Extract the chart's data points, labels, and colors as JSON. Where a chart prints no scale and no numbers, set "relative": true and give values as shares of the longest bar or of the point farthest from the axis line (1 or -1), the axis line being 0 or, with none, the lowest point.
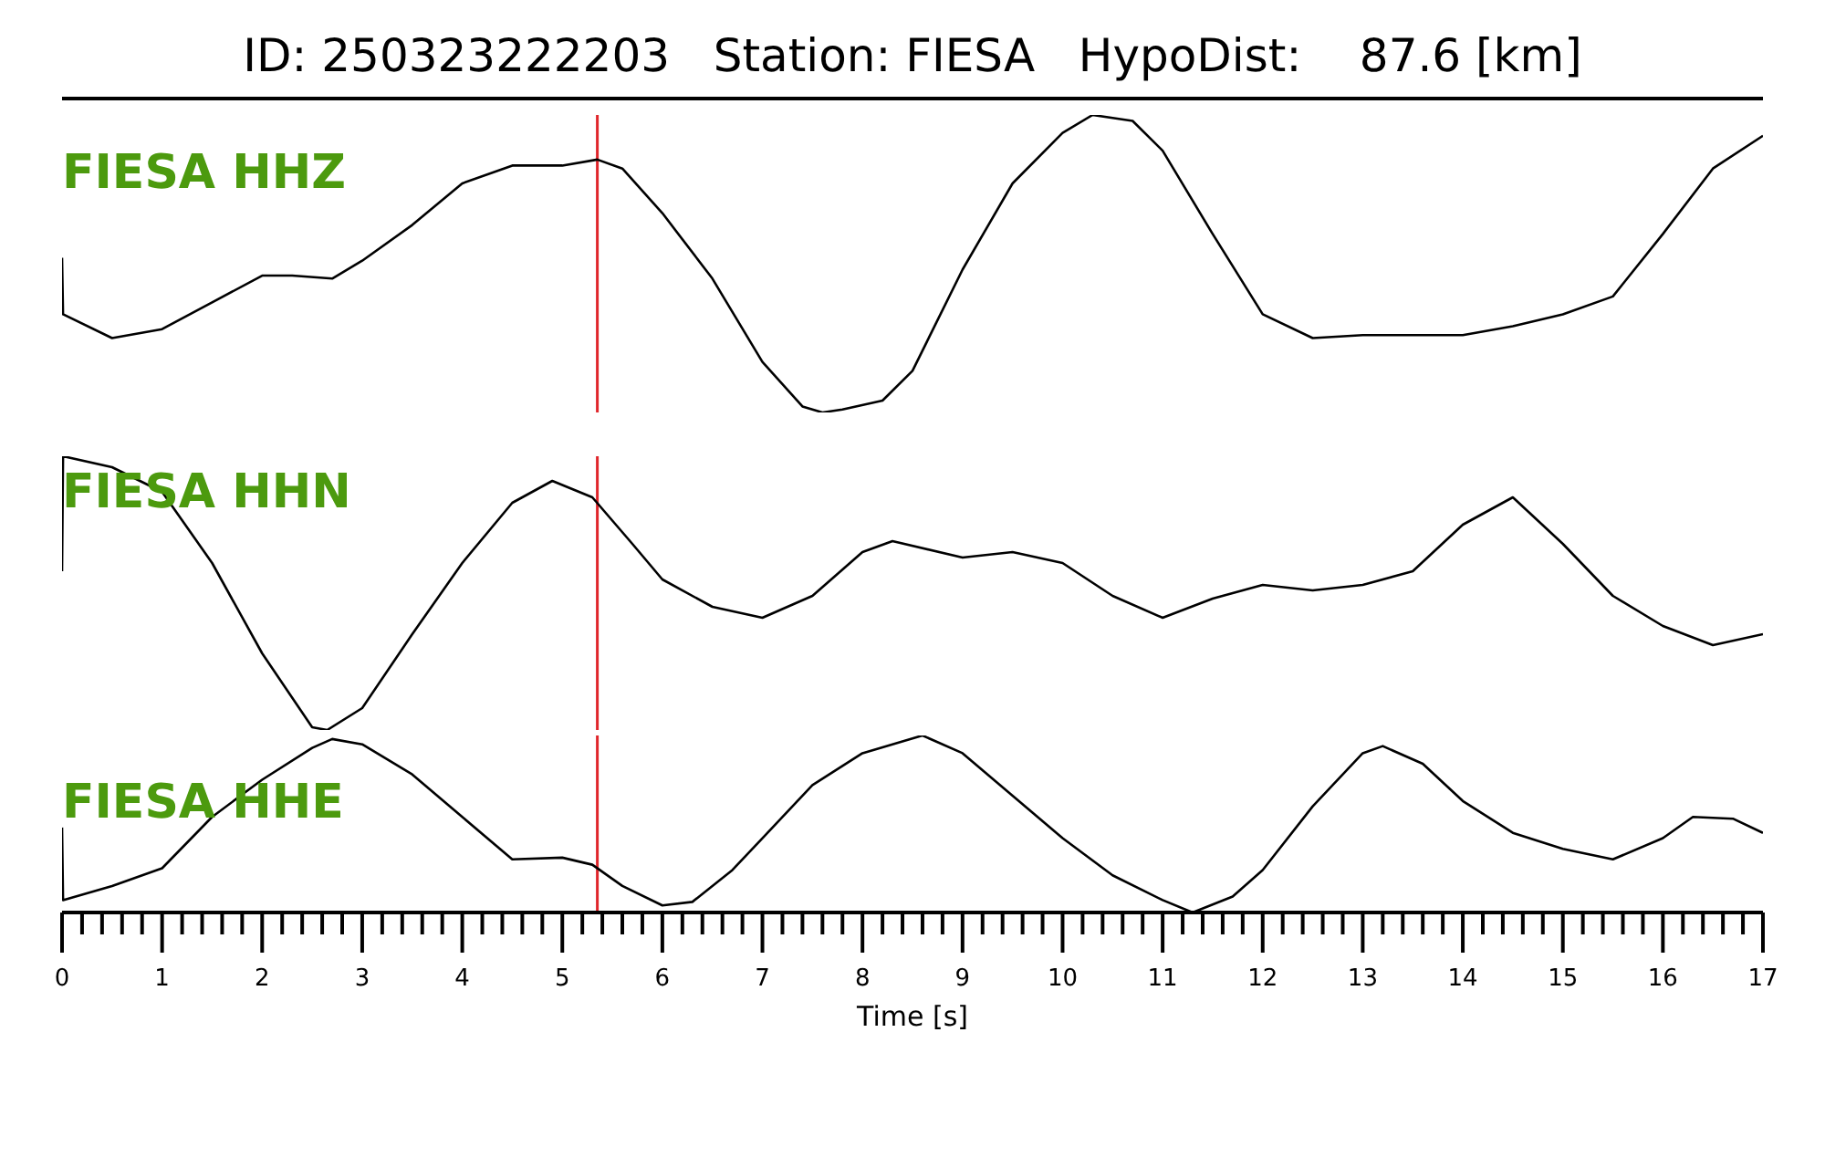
{
  "chart_data": [
    {
      "type": "line",
      "relative": true,
      "title": "ID: 250323222203   Station: FIESA   HypoDist:    87.6 [km]",
      "xlim": [
        0,
        17
      ],
      "tick_labels": false,
      "series": [
        {
          "name": "FIESA HHZ",
          "color": "#000000",
          "x": [
            0,
            0.01,
            0.5,
            1,
            1.5,
            2,
            2.3,
            2.7,
            3,
            3.5,
            4,
            4.5,
            5,
            5.35,
            5.6,
            6,
            6.5,
            7,
            7.4,
            7.6,
            7.8,
            8.2,
            8.5,
            9,
            9.5,
            10,
            10.3,
            10.7,
            11,
            11.5,
            12,
            12.5,
            13,
            13.5,
            14,
            14.5,
            15,
            15.5,
            16,
            16.5,
            17
          ],
          "values": [
            0.52,
            0.33,
            0.25,
            0.28,
            0.37,
            0.46,
            0.46,
            0.45,
            0.51,
            0.63,
            0.77,
            0.83,
            0.83,
            0.85,
            0.82,
            0.67,
            0.45,
            0.17,
            0.02,
            0,
            0.01,
            0.04,
            0.14,
            0.48,
            0.77,
            0.94,
            1,
            0.98,
            0.88,
            0.6,
            0.33,
            0.25,
            0.26,
            0.26,
            0.26,
            0.29,
            0.33,
            0.39,
            0.6,
            0.82,
            0.93
          ]
        }
      ],
      "ref_lines": [
        {
          "axis": "x",
          "value": 5.35,
          "color": "#e0262b"
        }
      ]
    },
    {
      "type": "line",
      "relative": true,
      "xlim": [
        0,
        17
      ],
      "tick_labels": false,
      "series": [
        {
          "name": "FIESA HHN",
          "color": "#000000",
          "x": [
            0,
            0.01,
            0.5,
            1,
            1.5,
            2,
            2.5,
            2.65,
            3,
            3.5,
            4,
            4.5,
            4.9,
            5.3,
            5.7,
            6,
            6.5,
            7,
            7.5,
            8,
            8.3,
            9,
            9.5,
            10,
            10.5,
            11,
            11.5,
            12,
            12.5,
            13,
            13.5,
            14,
            14.5,
            15,
            15.5,
            16,
            16.5,
            17
          ],
          "values": [
            0.58,
            1,
            0.96,
            0.87,
            0.61,
            0.28,
            0.01,
            0,
            0.08,
            0.35,
            0.61,
            0.83,
            0.91,
            0.85,
            0.68,
            0.55,
            0.45,
            0.41,
            0.49,
            0.65,
            0.69,
            0.63,
            0.65,
            0.61,
            0.49,
            0.41,
            0.48,
            0.53,
            0.51,
            0.53,
            0.58,
            0.75,
            0.85,
            0.68,
            0.49,
            0.38,
            0.31,
            0.35
          ]
        }
      ],
      "ref_lines": [
        {
          "axis": "x",
          "value": 5.35,
          "color": "#e0262b"
        }
      ]
    },
    {
      "type": "line",
      "relative": true,
      "xlabel": "Time [s]",
      "xlim": [
        0,
        17
      ],
      "tick_labels": "x",
      "xticks": [
        0,
        {
          "value": 0.2,
          "label": null
        },
        {
          "value": 0.4,
          "label": null
        },
        {
          "value": 0.6,
          "label": null
        },
        {
          "value": 0.8,
          "label": null
        },
        1,
        {
          "value": 1.2,
          "label": null
        },
        {
          "value": 1.4,
          "label": null
        },
        {
          "value": 1.6,
          "label": null
        },
        {
          "value": 1.8,
          "label": null
        },
        2,
        {
          "value": 2.2,
          "label": null
        },
        {
          "value": 2.4,
          "label": null
        },
        {
          "value": 2.6,
          "label": null
        },
        {
          "value": 2.8,
          "label": null
        },
        3,
        {
          "value": 3.2,
          "label": null
        },
        {
          "value": 3.4,
          "label": null
        },
        {
          "value": 3.6,
          "label": null
        },
        {
          "value": 3.8,
          "label": null
        },
        4,
        {
          "value": 4.2,
          "label": null
        },
        {
          "value": 4.4,
          "label": null
        },
        {
          "value": 4.6,
          "label": null
        },
        {
          "value": 4.8,
          "label": null
        },
        5,
        {
          "value": 5.2,
          "label": null
        },
        {
          "value": 5.4,
          "label": null
        },
        {
          "value": 5.6,
          "label": null
        },
        {
          "value": 5.8,
          "label": null
        },
        6,
        {
          "value": 6.2,
          "label": null
        },
        {
          "value": 6.4,
          "label": null
        },
        {
          "value": 6.6,
          "label": null
        },
        {
          "value": 6.8,
          "label": null
        },
        7,
        {
          "value": 7.2,
          "label": null
        },
        {
          "value": 7.4,
          "label": null
        },
        {
          "value": 7.6,
          "label": null
        },
        {
          "value": 7.8,
          "label": null
        },
        8,
        {
          "value": 8.2,
          "label": null
        },
        {
          "value": 8.4,
          "label": null
        },
        {
          "value": 8.6,
          "label": null
        },
        {
          "value": 8.8,
          "label": null
        },
        9,
        {
          "value": 9.2,
          "label": null
        },
        {
          "value": 9.4,
          "label": null
        },
        {
          "value": 9.6,
          "label": null
        },
        {
          "value": 9.8,
          "label": null
        },
        10,
        {
          "value": 10.2,
          "label": null
        },
        {
          "value": 10.4,
          "label": null
        },
        {
          "value": 10.6,
          "label": null
        },
        {
          "value": 10.8,
          "label": null
        },
        11,
        {
          "value": 11.2,
          "label": null
        },
        {
          "value": 11.4,
          "label": null
        },
        {
          "value": 11.6,
          "label": null
        },
        {
          "value": 11.8,
          "label": null
        },
        12,
        {
          "value": 12.2,
          "label": null
        },
        {
          "value": 12.4,
          "label": null
        },
        {
          "value": 12.6,
          "label": null
        },
        {
          "value": 12.8,
          "label": null
        },
        13,
        {
          "value": 13.2,
          "label": null
        },
        {
          "value": 13.4,
          "label": null
        },
        {
          "value": 13.6,
          "label": null
        },
        {
          "value": 13.8,
          "label": null
        },
        14,
        {
          "value": 14.2,
          "label": null
        },
        {
          "value": 14.4,
          "label": null
        },
        {
          "value": 14.6,
          "label": null
        },
        {
          "value": 14.8,
          "label": null
        },
        15,
        {
          "value": 15.2,
          "label": null
        },
        {
          "value": 15.4,
          "label": null
        },
        {
          "value": 15.6,
          "label": null
        },
        {
          "value": 15.8,
          "label": null
        },
        16,
        {
          "value": 16.2,
          "label": null
        },
        {
          "value": 16.4,
          "label": null
        },
        {
          "value": 16.6,
          "label": null
        },
        {
          "value": 16.8,
          "label": null
        },
        17
      ],
      "series": [
        {
          "name": "FIESA HHE",
          "color": "#000000",
          "x": [
            0,
            0.01,
            0.5,
            1,
            1.5,
            2,
            2.5,
            2.7,
            3,
            3.5,
            4,
            4.5,
            5,
            5.3,
            5.6,
            6,
            6.3,
            6.7,
            7,
            7.5,
            8,
            8.6,
            9,
            9.5,
            10,
            10.5,
            11,
            11.3,
            11.7,
            12,
            12.5,
            13,
            13.2,
            13.6,
            14,
            14.5,
            15,
            15.5,
            16,
            16.3,
            16.7,
            17
          ],
          "values": [
            0.48,
            0.07,
            0.15,
            0.25,
            0.54,
            0.75,
            0.93,
            0.98,
            0.95,
            0.78,
            0.54,
            0.3,
            0.31,
            0.27,
            0.15,
            0.04,
            0.06,
            0.24,
            0.42,
            0.72,
            0.9,
            1,
            0.9,
            0.66,
            0.42,
            0.21,
            0.07,
            0,
            0.09,
            0.24,
            0.6,
            0.9,
            0.94,
            0.84,
            0.63,
            0.45,
            0.36,
            0.3,
            0.42,
            0.54,
            0.53,
            0.45
          ]
        }
      ],
      "ref_lines": [
        {
          "axis": "x",
          "value": 5.35,
          "color": "#e0262b"
        }
      ]
    }
  ]
}
